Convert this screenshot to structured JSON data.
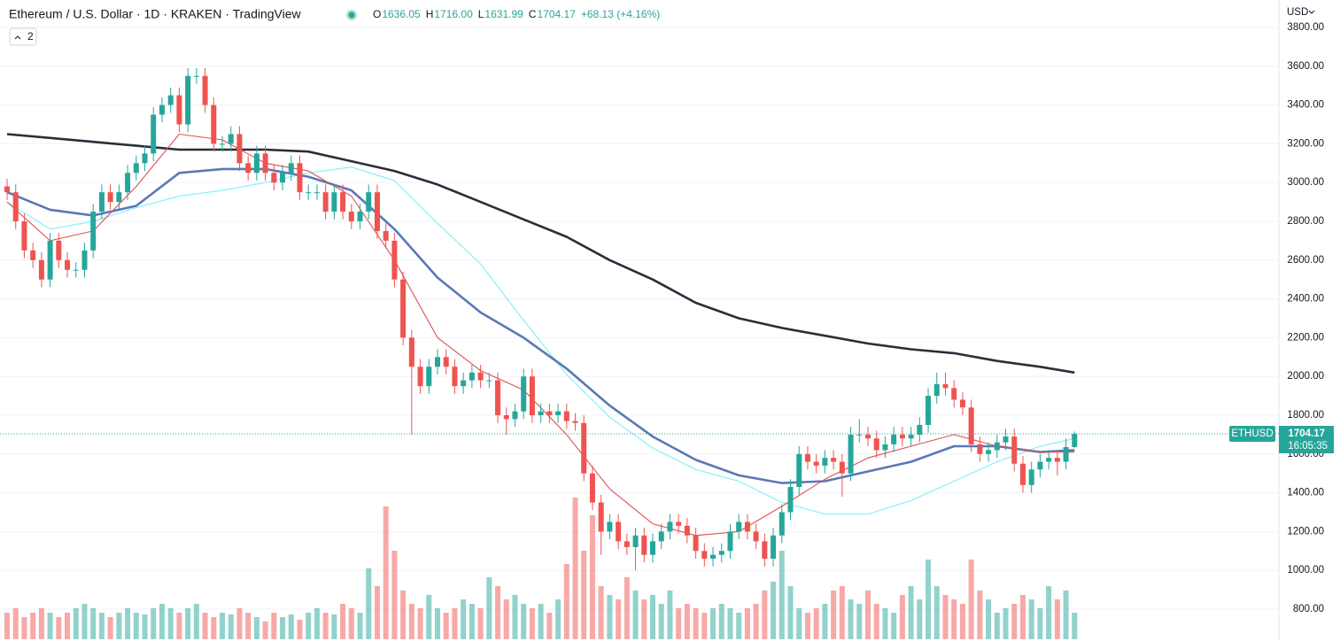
{
  "header": {
    "title": "Ethereum / U.S. Dollar · 1D · KRAKEN · TradingView",
    "ohlc": [
      {
        "key": "O",
        "value": "1636.05"
      },
      {
        "key": "H",
        "value": "1716.00"
      },
      {
        "key": "L",
        "value": "1631.99"
      },
      {
        "key": "C",
        "value": "1704.17"
      }
    ],
    "change": "+68.13 (+4.16%)",
    "indicator_count": "2",
    "currency": "USD"
  },
  "price_label": {
    "symbol": "ETHUSD",
    "price": "1704.17",
    "countdown": "16:05:35"
  },
  "chart_data": {
    "type": "candlestick",
    "up_color": "#26a69a",
    "down_color": "#ef5350",
    "ylim": [
      800,
      3800
    ],
    "yticks": [
      {
        "value": 800,
        "label": "800.00"
      },
      {
        "value": 1000,
        "label": "1000.00"
      },
      {
        "value": 1200,
        "label": "1200.00"
      },
      {
        "value": 1400,
        "label": "1400.00"
      },
      {
        "value": 1600,
        "label": "1600.00"
      },
      {
        "value": 1800,
        "label": "1800.00"
      },
      {
        "value": 2000,
        "label": "2000.00"
      },
      {
        "value": 2200,
        "label": "2200.00"
      },
      {
        "value": 2400,
        "label": "2400.00"
      },
      {
        "value": 2600,
        "label": "2600.00"
      },
      {
        "value": 2800,
        "label": "2800.00"
      },
      {
        "value": 3000,
        "label": "3000.00"
      },
      {
        "value": 3200,
        "label": "3200.00"
      },
      {
        "value": 3400,
        "label": "3400.00"
      },
      {
        "value": 3600,
        "label": "3600.00"
      },
      {
        "value": 3800,
        "label": "3800.00"
      }
    ],
    "grid": true,
    "open": [
      2980,
      2950,
      2800,
      2650,
      2600,
      2500,
      2700,
      2600,
      2550,
      2550,
      2650,
      2850,
      2950,
      2900,
      2950,
      3050,
      3100,
      3150,
      3350,
      3400,
      3450,
      3300,
      3550,
      3550,
      3400,
      3200,
      3200,
      3250,
      3100,
      3050,
      3150,
      3050,
      3000,
      3050,
      3100,
      2950,
      2950,
      2950,
      2850,
      2950,
      2850,
      2800,
      2850,
      2950,
      2750,
      2700,
      2500,
      2200,
      2050,
      1950,
      2050,
      2100,
      2050,
      1950,
      1980,
      2020,
      1980,
      1980,
      1800,
      1780,
      1820,
      2000,
      1800,
      1820,
      1800,
      1820,
      1770,
      1760,
      1500,
      1350,
      1200,
      1250,
      1150,
      1120,
      1180,
      1080,
      1150,
      1200,
      1250,
      1230,
      1180,
      1100,
      1060,
      1080,
      1100,
      1200,
      1250,
      1200,
      1150,
      1060,
      1180,
      1300,
      1430,
      1600,
      1560,
      1540,
      1580,
      1560,
      1500,
      1700,
      1700,
      1680,
      1620,
      1650,
      1700,
      1680,
      1700,
      1750,
      1900,
      1960,
      1940,
      1880,
      1840,
      1650,
      1600,
      1620,
      1660,
      1690,
      1550,
      1440,
      1520,
      1560,
      1580,
      1560,
      1636.05
    ],
    "high": [
      3020,
      2990,
      2840,
      2690,
      2640,
      2740,
      2740,
      2640,
      2590,
      2690,
      2890,
      2990,
      2990,
      2990,
      3090,
      3140,
      3190,
      3390,
      3440,
      3490,
      3490,
      3590,
      3590,
      3590,
      3440,
      3240,
      3290,
      3290,
      3140,
      3190,
      3190,
      3090,
      3090,
      3140,
      3140,
      2990,
      2990,
      2990,
      2990,
      2990,
      2890,
      2890,
      2990,
      2990,
      2790,
      2740,
      2540,
      2240,
      2090,
      2090,
      2140,
      2140,
      2090,
      2020,
      2060,
      2060,
      2020,
      2020,
      1840,
      1860,
      2040,
      2040,
      1860,
      1860,
      1860,
      1860,
      1810,
      1800,
      1540,
      1390,
      1290,
      1290,
      1190,
      1220,
      1220,
      1190,
      1240,
      1290,
      1290,
      1270,
      1220,
      1140,
      1120,
      1140,
      1240,
      1290,
      1290,
      1240,
      1190,
      1220,
      1340,
      1470,
      1640,
      1640,
      1600,
      1620,
      1620,
      1600,
      1740,
      1780,
      1740,
      1720,
      1690,
      1740,
      1740,
      1740,
      1790,
      1940,
      2020,
      2020,
      1980,
      1920,
      1880,
      1690,
      1660,
      1700,
      1730,
      1730,
      1590,
      1560,
      1600,
      1620,
      1620,
      1680,
      1716
    ],
    "low": [
      2910,
      2760,
      2610,
      2560,
      2460,
      2460,
      2560,
      2510,
      2510,
      2510,
      2610,
      2810,
      2860,
      2860,
      2910,
      3010,
      3060,
      3110,
      3310,
      3360,
      3260,
      3260,
      3510,
      3360,
      3160,
      3160,
      3160,
      3060,
      3010,
      3010,
      3010,
      2960,
      2960,
      3010,
      2910,
      2910,
      2910,
      2810,
      2810,
      2810,
      2760,
      2760,
      2810,
      2710,
      2660,
      2460,
      2160,
      1700,
      1910,
      1910,
      2010,
      2010,
      1910,
      1910,
      1940,
      1940,
      1940,
      1760,
      1700,
      1740,
      1780,
      1760,
      1760,
      1760,
      1760,
      1730,
      1720,
      1460,
      1310,
      1080,
      1160,
      1110,
      1080,
      1000,
      1040,
      1040,
      1110,
      1160,
      1190,
      1140,
      1060,
      1020,
      1020,
      1040,
      1060,
      1160,
      1160,
      1110,
      1020,
      1020,
      1140,
      1260,
      1390,
      1520,
      1500,
      1500,
      1520,
      1380,
      1460,
      1660,
      1640,
      1580,
      1580,
      1610,
      1640,
      1640,
      1660,
      1710,
      1860,
      1900,
      1840,
      1800,
      1610,
      1560,
      1560,
      1580,
      1620,
      1510,
      1400,
      1400,
      1480,
      1520,
      1490,
      1520,
      1631.99
    ],
    "close": [
      2950,
      2800,
      2650,
      2600,
      2500,
      2700,
      2600,
      2550,
      2550,
      2650,
      2850,
      2950,
      2900,
      2950,
      3050,
      3100,
      3150,
      3350,
      3400,
      3450,
      3300,
      3550,
      3550,
      3400,
      3200,
      3200,
      3250,
      3100,
      3050,
      3150,
      3050,
      3000,
      3050,
      3100,
      2950,
      2950,
      2950,
      2850,
      2950,
      2850,
      2800,
      2850,
      2950,
      2750,
      2700,
      2500,
      2200,
      2050,
      1950,
      2050,
      2100,
      2050,
      1950,
      1980,
      2020,
      1980,
      1980,
      1800,
      1780,
      1820,
      2000,
      1800,
      1820,
      1800,
      1820,
      1770,
      1760,
      1500,
      1350,
      1200,
      1250,
      1150,
      1120,
      1180,
      1080,
      1150,
      1200,
      1250,
      1230,
      1180,
      1100,
      1060,
      1080,
      1100,
      1200,
      1250,
      1200,
      1150,
      1060,
      1180,
      1300,
      1430,
      1600,
      1560,
      1540,
      1580,
      1560,
      1500,
      1700,
      1700,
      1680,
      1620,
      1650,
      1700,
      1680,
      1700,
      1750,
      1900,
      1960,
      1940,
      1880,
      1840,
      1650,
      1600,
      1620,
      1660,
      1690,
      1550,
      1440,
      1520,
      1560,
      1580,
      1560,
      1636.05,
      1704.17
    ],
    "volume": [
      30,
      35,
      25,
      30,
      35,
      30,
      25,
      30,
      35,
      40,
      35,
      30,
      25,
      30,
      35,
      30,
      28,
      35,
      40,
      35,
      30,
      35,
      40,
      30,
      25,
      30,
      28,
      35,
      30,
      25,
      20,
      30,
      25,
      28,
      22,
      30,
      35,
      30,
      28,
      40,
      35,
      30,
      80,
      60,
      150,
      100,
      55,
      40,
      35,
      50,
      35,
      30,
      35,
      45,
      40,
      35,
      70,
      60,
      45,
      50,
      40,
      35,
      40,
      30,
      45,
      85,
      160,
      100,
      140,
      60,
      50,
      45,
      70,
      55,
      45,
      50,
      40,
      55,
      35,
      40,
      35,
      30,
      35,
      40,
      35,
      30,
      35,
      40,
      55,
      65,
      100,
      60,
      35,
      30,
      35,
      40,
      55,
      60,
      45,
      40,
      55,
      40,
      35,
      30,
      50,
      60,
      45,
      90,
      60,
      50,
      45,
      40,
      90,
      55,
      45,
      30,
      35,
      40,
      50,
      45,
      35,
      60,
      45,
      55,
      30
    ],
    "ma_x": [
      0,
      5,
      10,
      15,
      20,
      25,
      30,
      35,
      40,
      45,
      50,
      55,
      60,
      65,
      70,
      75,
      80,
      85,
      90,
      95,
      100,
      105,
      110,
      115,
      120,
      124
    ],
    "series": [
      {
        "color": "#2a2e39",
        "width": 2.6,
        "values": [
          3250,
          3230,
          3210,
          3190,
          3170,
          3170,
          3170,
          3160,
          3110,
          3060,
          2990,
          2900,
          2810,
          2720,
          2600,
          2500,
          2380,
          2300,
          2250,
          2210,
          2170,
          2140,
          2120,
          2080,
          2050,
          2020
        ]
      },
      {
        "color": "#86f0f6",
        "width": 1.2,
        "values": [
          2900,
          2760,
          2800,
          2870,
          2930,
          2960,
          3000,
          3050,
          3080,
          3010,
          2790,
          2580,
          2290,
          2010,
          1790,
          1630,
          1520,
          1460,
          1350,
          1290,
          1290,
          1360,
          1460,
          1560,
          1640,
          1680
        ]
      },
      {
        "color": "#5b78b6",
        "width": 2.6,
        "values": [
          2950,
          2860,
          2830,
          2880,
          3050,
          3070,
          3070,
          3030,
          2960,
          2760,
          2510,
          2330,
          2200,
          2040,
          1850,
          1690,
          1570,
          1490,
          1450,
          1460,
          1510,
          1560,
          1640,
          1640,
          1610,
          1620
        ]
      },
      {
        "color": "#e0504d",
        "width": 1.1,
        "values": [
          2900,
          2700,
          2750,
          2980,
          3250,
          3220,
          3100,
          3060,
          2930,
          2600,
          2200,
          2030,
          1930,
          1700,
          1420,
          1240,
          1180,
          1200,
          1330,
          1470,
          1580,
          1640,
          1700,
          1640,
          1610,
          1610
        ]
      }
    ]
  }
}
